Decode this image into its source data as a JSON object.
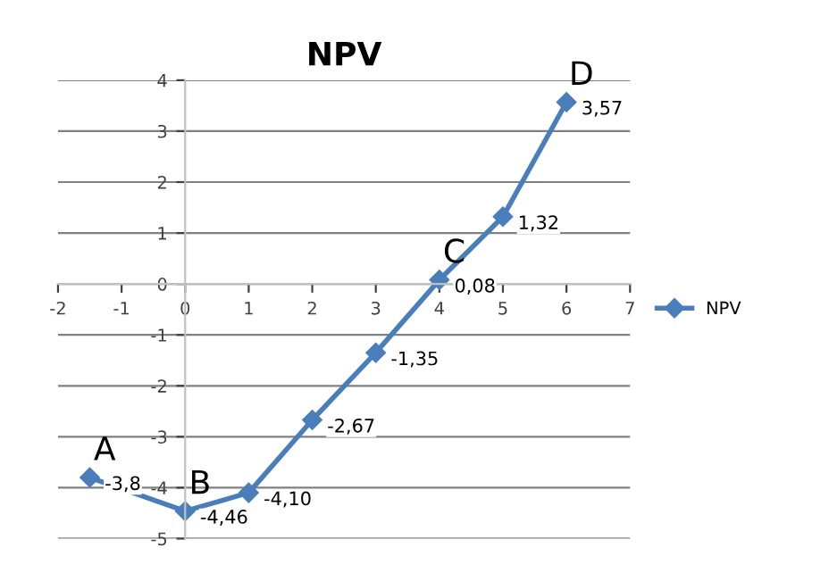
{
  "chart_data": {
    "type": "line",
    "title": "NPV",
    "x": [
      -1.5,
      0,
      1,
      2,
      3,
      4,
      5,
      6
    ],
    "series": [
      {
        "name": "NPV",
        "color": "#4a7ebb",
        "values": [
          -3.8,
          -4.46,
          -4.1,
          -2.67,
          -1.35,
          0.08,
          1.32,
          3.57
        ],
        "value_labels": [
          "-3,8",
          "-4,46",
          "-4,10",
          "-2,67",
          "-1,35",
          "0,08",
          "1,32",
          "3,57"
        ]
      }
    ],
    "xlim": [
      -2,
      7
    ],
    "xticks": [
      -2,
      -1,
      0,
      1,
      2,
      3,
      4,
      5,
      6,
      7
    ],
    "ylim": [
      -5,
      4
    ],
    "yticks": [
      -5,
      -4,
      -3,
      -2,
      -1,
      0,
      1,
      2,
      3,
      4
    ],
    "grid": "y",
    "legend": "right",
    "marker": "diamond",
    "line_style": "solid",
    "annotations": [
      {
        "text": "A",
        "x": -1.5,
        "y": -3.8
      },
      {
        "text": "B",
        "x": 0,
        "y": -4.46
      },
      {
        "text": "C",
        "x": 4,
        "y": 0.08
      },
      {
        "text": "D",
        "x": 6,
        "y": 3.57
      }
    ]
  }
}
